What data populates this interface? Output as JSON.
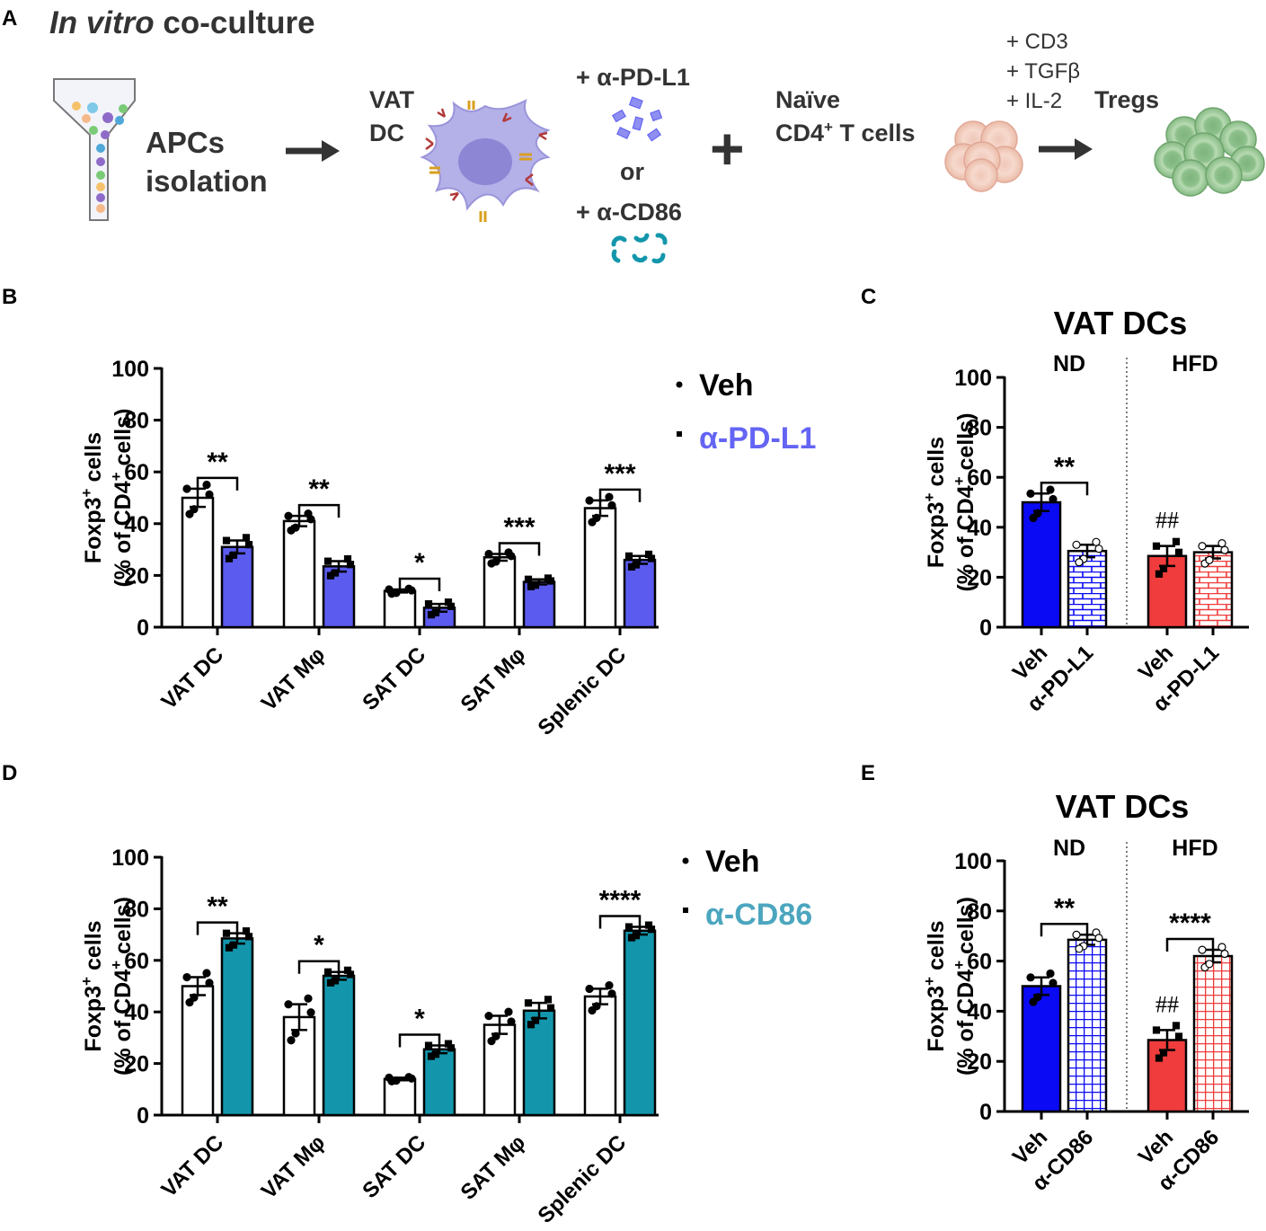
{
  "panelA": {
    "letter": "A",
    "title_italic": "In vitro",
    "title_rest": " co-culture",
    "apcs_line1": "APCs",
    "apcs_line2": "isolation",
    "vat_line1": "VAT",
    "vat_line2": "DC",
    "ab1": "+ α-PD-L1",
    "or": "or",
    "ab2": "+ α-CD86",
    "plus": "+",
    "naive_line1": "Naïve",
    "naive_line2_a": "CD4",
    "naive_line2_sup": "+",
    "naive_line2_b": " T cells",
    "stim1": "+ CD3",
    "stim2": "+ TGFβ",
    "stim3": "+ IL-2",
    "tregs": "Tregs"
  },
  "colors": {
    "pdl1": "#5B5BF0",
    "pdl1_text": "#6464F4",
    "cd86": "#1396AC",
    "cd86_text": "#4BA6BE",
    "nd": "#0A0AF5",
    "hfd": "#F03C3C",
    "apc_purple": "#B4B0E8",
    "tcell": "#F0C8B8",
    "treg": "#9CCB9A"
  },
  "chart_data": [
    {
      "id": "B",
      "type": "bar",
      "letter": "B",
      "ylabel_main": "Foxp3",
      "ylabel_sup": "+",
      "ylabel_tail": " cells",
      "ylabel2_a": "(% of CD4",
      "ylabel2_sup": "+",
      "ylabel2_b": " cells)",
      "ylim": [
        0,
        100
      ],
      "yticks": [
        "0",
        "20",
        "40",
        "60",
        "80",
        "100"
      ],
      "categories": [
        "VAT DC",
        "VAT Mφ",
        "SAT DC",
        "SAT Mφ",
        "Splenic DC"
      ],
      "series": [
        {
          "name": "Veh",
          "values": [
            50,
            41,
            14,
            27,
            46
          ],
          "sem": [
            3.5,
            2,
            0.6,
            1.3,
            3
          ]
        },
        {
          "name": "α-PD-L1",
          "values": [
            31,
            23.5,
            7.5,
            17.5,
            26
          ],
          "sem": [
            2.5,
            2,
            1.5,
            1,
            1.5
          ]
        }
      ],
      "significance": [
        "**",
        "**",
        "*",
        "***",
        "***"
      ],
      "legend": [
        "Veh",
        "α-PD-L1"
      ]
    },
    {
      "id": "C",
      "type": "bar",
      "letter": "C",
      "title": "VAT DCs",
      "group_labels": [
        "ND",
        "HFD"
      ],
      "ylabel_main": "Foxp3",
      "ylabel_sup": "+",
      "ylabel_tail": " cells",
      "ylabel2_a": "(% of  CD4",
      "ylabel2_sup": "+",
      "ylabel2_b": " cells)",
      "ylim": [
        0,
        100
      ],
      "yticks": [
        "0",
        "20",
        "40",
        "60",
        "80",
        "100"
      ],
      "categories": [
        "Veh",
        "α-PD-L1",
        "Veh",
        "α-PD-L1"
      ],
      "values": [
        50,
        30.5,
        28.5,
        30
      ],
      "sem": [
        3.5,
        2.5,
        4,
        2.5
      ],
      "significance": [
        "**"
      ],
      "hash_label": "##"
    },
    {
      "id": "D",
      "type": "bar",
      "letter": "D",
      "ylabel_main": "Foxp3",
      "ylabel_sup": "+",
      "ylabel_tail": " cells",
      "ylabel2_a": "(% of CD4",
      "ylabel2_sup": "+",
      "ylabel2_b": " cells)",
      "ylim": [
        0,
        100
      ],
      "yticks": [
        "0",
        "20",
        "40",
        "60",
        "80",
        "100"
      ],
      "categories": [
        "VAT DC",
        "VAT Mφ",
        "SAT DC",
        "SAT Mφ",
        "Splenic DC"
      ],
      "series": [
        {
          "name": "Veh",
          "values": [
            50,
            38,
            14,
            35,
            46
          ],
          "sem": [
            3.5,
            5,
            0.5,
            3.5,
            3
          ]
        },
        {
          "name": "α-CD86",
          "values": [
            68.5,
            54,
            25.5,
            40.5,
            71.5
          ],
          "sem": [
            2,
            1.5,
            1.5,
            3,
            1.5
          ]
        }
      ],
      "significance": [
        "**",
        "*",
        "*",
        "",
        "****"
      ],
      "legend": [
        "Veh",
        "α-CD86"
      ]
    },
    {
      "id": "E",
      "type": "bar",
      "letter": "E",
      "title": "VAT DCs",
      "group_labels": [
        "ND",
        "HFD"
      ],
      "ylabel_main": "Foxp3",
      "ylabel_sup": "+",
      "ylabel_tail": " cells",
      "ylabel2_a": "(% of  CD4",
      "ylabel2_sup": "+",
      "ylabel2_b": " cells)",
      "ylim": [
        0,
        100
      ],
      "yticks": [
        "0",
        "20",
        "40",
        "60",
        "80",
        "100"
      ],
      "categories": [
        "Veh",
        "α-CD86",
        "Veh",
        "α-CD86"
      ],
      "values": [
        50,
        68.5,
        28.5,
        62
      ],
      "sem": [
        3.5,
        2,
        4,
        2.5
      ],
      "significance": [
        "**",
        "****"
      ],
      "hash_label": "##"
    }
  ]
}
